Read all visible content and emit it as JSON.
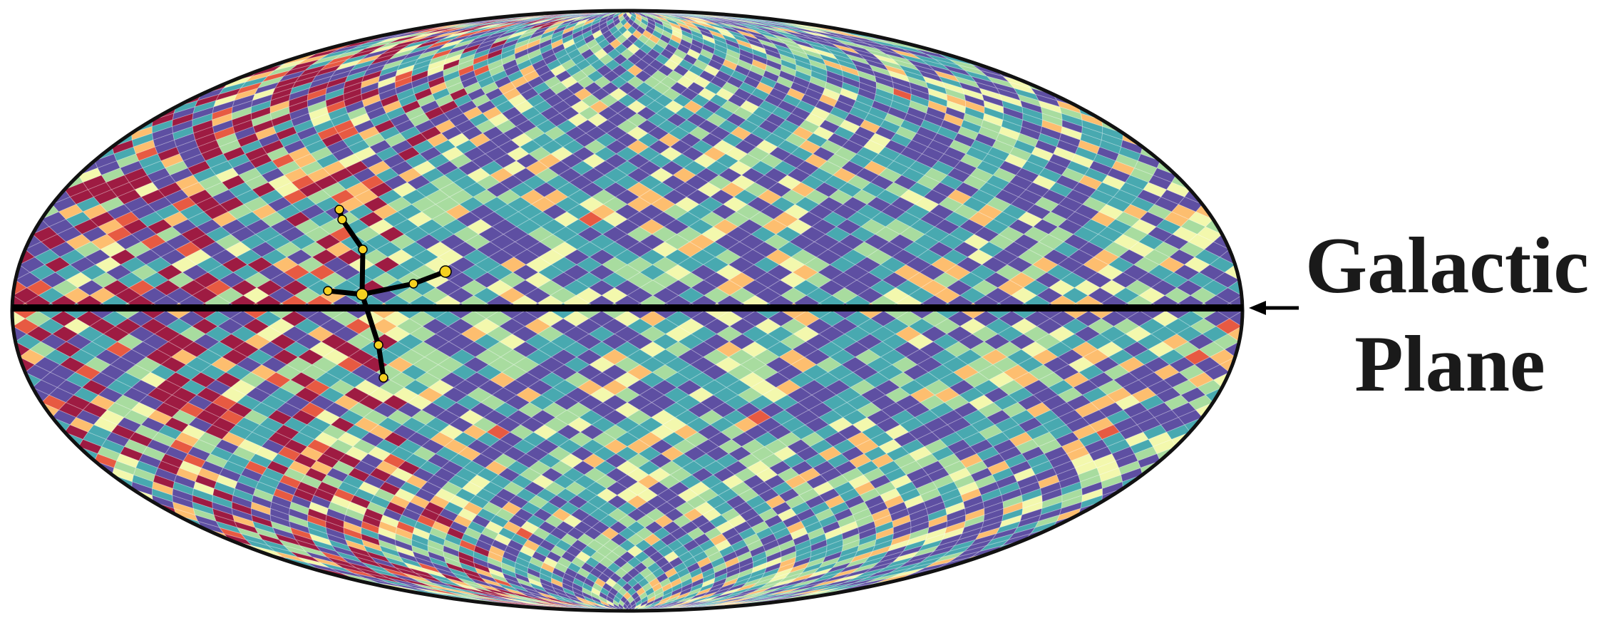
{
  "annotation": {
    "lines": [
      "Galactic",
      "Plane"
    ]
  }
}
